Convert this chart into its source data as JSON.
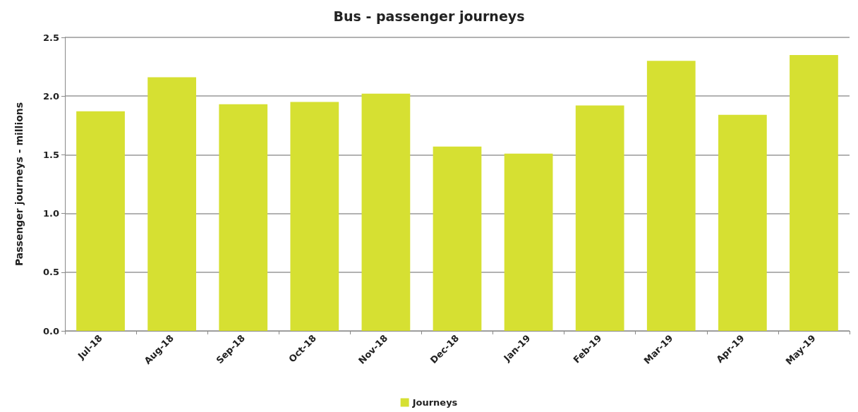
{
  "chart_data": {
    "type": "bar",
    "title": "Bus - passenger journeys",
    "ylabel": "Passenger journeys - millions",
    "categories": [
      "Jul-18",
      "Aug-18",
      "Sep-18",
      "Oct-18",
      "Nov-18",
      "Dec-18",
      "Jan-19",
      "Feb-19",
      "Mar-19",
      "Apr-19",
      "May-19"
    ],
    "series": [
      {
        "name": "Journeys",
        "color": "#d6e032",
        "values": [
          1.87,
          2.16,
          1.93,
          1.95,
          2.02,
          1.57,
          1.51,
          1.92,
          2.3,
          1.84,
          2.35
        ]
      }
    ],
    "ylim": [
      0,
      2.5
    ],
    "yticks": [
      {
        "value": 0,
        "label": "0.0"
      },
      {
        "value": 0.5,
        "label": "0.5"
      },
      {
        "value": 1,
        "label": "1.0"
      },
      {
        "value": 1.5,
        "label": "1.5"
      },
      {
        "value": 2,
        "label": "2.0"
      },
      {
        "value": 2.5,
        "label": "2.5"
      }
    ],
    "grid": "y",
    "legend": "bottom"
  }
}
